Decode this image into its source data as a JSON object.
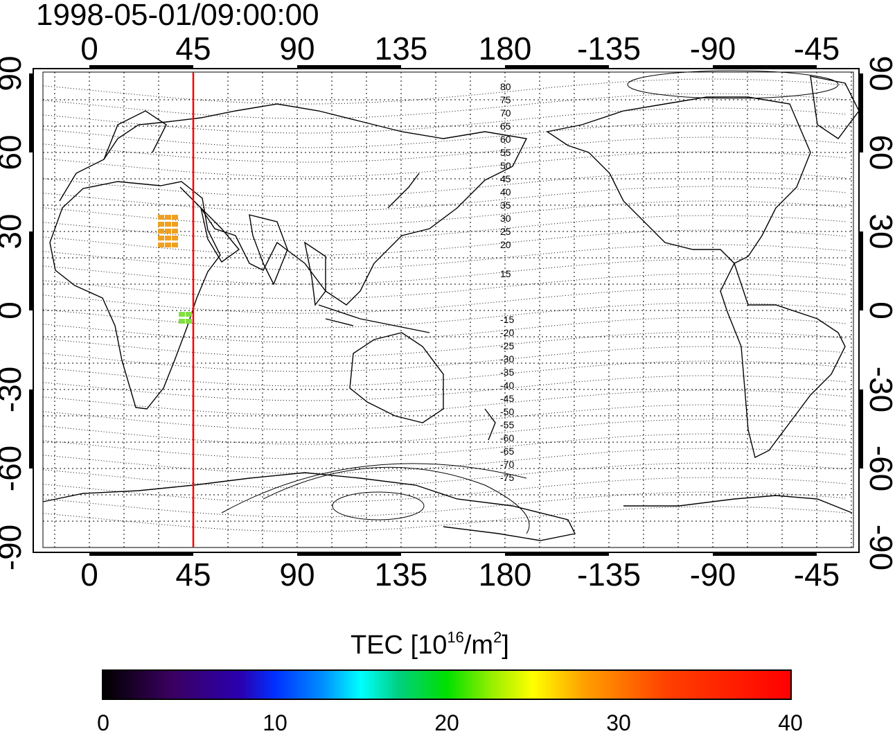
{
  "title": "1998-05-01/09:00:00",
  "top_axis_labels": [
    "0",
    "45",
    "90",
    "135",
    "180",
    "-135",
    "-90",
    "-45"
  ],
  "bottom_axis_labels": [
    "0",
    "45",
    "90",
    "135",
    "180",
    "-135",
    "-90",
    "-45"
  ],
  "left_axis_labels": [
    "90",
    "60",
    "30",
    "0",
    "-30",
    "-60",
    "-90"
  ],
  "right_axis_labels": [
    "90",
    "60",
    "30",
    "0",
    "-30",
    "-60",
    "-90"
  ],
  "contour_labels": [
    "80",
    "75",
    "70",
    "65",
    "60",
    "55",
    "50",
    "45",
    "40",
    "35",
    "30",
    "25",
    "20",
    "15",
    "-15",
    "-20",
    "-25",
    "-30",
    "-35",
    "-40",
    "-45",
    "-50",
    "-55",
    "-60",
    "-65",
    "-70",
    "-75"
  ],
  "meridian_marker_lon": 45,
  "colorbar": {
    "title_prefix": "TEC  [10",
    "title_exp1": "16",
    "title_mid": "/m",
    "title_exp2": "2",
    "title_suffix": "]",
    "ticks": [
      "0",
      "10",
      "20",
      "30",
      "40"
    ],
    "range": [
      0,
      40
    ]
  },
  "colors": {
    "marker": "#ff0000",
    "grid": "#000000"
  }
}
